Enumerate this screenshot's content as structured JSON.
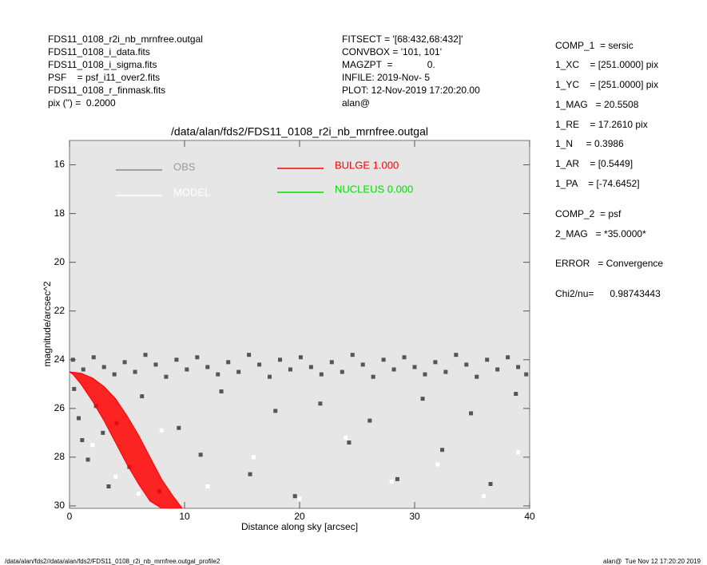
{
  "header": {
    "left": [
      "FDS11_0108_r2i_nb_mrnfree.outgal",
      "FDS11_0108_i_data.fits",
      "FDS11_0108_i_sigma.fits",
      "PSF    = psf_i11_over2.fits",
      "FDS11_0108_r_finmask.fits",
      "pix (\") =  0.2000"
    ],
    "middle": [
      "FITSECT = '[68:432,68:432]'",
      "CONVBOX = '101, 101'",
      "MAGZPT  =             0.",
      "INFILE: 2019-Nov- 5",
      "PLOT: 12-Nov-2019 17:20:20.00",
      "alan@"
    ]
  },
  "panel": [
    "COMP_1  = sersic",
    "1_XC    = [251.0000] pix",
    "1_YC    = [251.0000] pix",
    "1_MAG   = 20.5508",
    "1_RE    = 17.2610 pix",
    "1_N     = 0.3986",
    "1_AR    = [0.5449]",
    "1_PA    = [-74.6452]",
    "COMP_2  = psf",
    "2_MAG   = *35.0000*",
    "ERROR   = Convergence",
    "Chi2/nu=      0.98743443"
  ],
  "footer": {
    "left": "/data/alan/fds2//data/alan/fds2/FDS11_0108_r2i_nb_mrnfree.outgal_profile2",
    "right": "alan@  Tue Nov 12 17:20:20 2019"
  },
  "chart_data": {
    "type": "scatter",
    "title": "/data/alan/fds2/FDS11_0108_r2i_nb_mrnfree.outgal",
    "x_label": "Distance along sky [arcsec]",
    "y_label": "magnitude/arcsec^2",
    "xlim": [
      0,
      40
    ],
    "ylim": [
      30.1,
      15
    ],
    "xticks": [
      0,
      10,
      20,
      30,
      40
    ],
    "yticks": [
      16,
      18,
      20,
      22,
      24,
      26,
      28,
      30
    ],
    "series": [
      {
        "name": "OBS",
        "color": "#555555",
        "x": [
          0.3,
          1.2,
          2.1,
          3.0,
          3.9,
          4.8,
          5.7,
          6.6,
          7.5,
          8.4,
          9.3,
          10.2,
          11.1,
          12.0,
          12.9,
          13.8,
          14.7,
          15.6,
          16.5,
          17.4,
          18.3,
          19.2,
          20.1,
          21.0,
          21.9,
          22.8,
          23.7,
          24.6,
          25.5,
          26.4,
          27.3,
          28.2,
          29.1,
          30.0,
          30.9,
          31.8,
          32.7,
          33.6,
          34.5,
          35.4,
          36.3,
          37.2,
          38.1,
          39.0,
          39.7,
          0.4,
          0.8,
          1.1,
          1.6,
          2.3,
          2.9,
          3.4,
          4.1,
          5.2,
          6.3,
          7.8,
          9.5,
          11.4,
          13.2,
          15.7,
          17.9,
          19.6,
          21.8,
          24.3,
          26.1,
          28.5,
          30.7,
          32.4,
          34.9,
          36.6,
          38.8
        ],
        "values": [
          24.0,
          24.4,
          23.9,
          24.3,
          24.6,
          24.1,
          24.5,
          23.8,
          24.2,
          24.7,
          24.0,
          24.4,
          23.9,
          24.3,
          24.6,
          24.1,
          24.5,
          23.8,
          24.2,
          24.7,
          24.0,
          24.4,
          23.9,
          24.3,
          24.6,
          24.1,
          24.5,
          23.8,
          24.2,
          24.7,
          24.0,
          24.4,
          23.9,
          24.3,
          24.6,
          24.1,
          24.5,
          23.8,
          24.2,
          24.7,
          24.0,
          24.4,
          23.9,
          24.3,
          24.6,
          25.2,
          26.4,
          27.3,
          28.1,
          25.9,
          27.0,
          29.2,
          26.6,
          28.4,
          25.5,
          29.4,
          26.8,
          27.9,
          25.3,
          28.7,
          26.1,
          29.6,
          25.8,
          27.4,
          26.5,
          28.9,
          25.6,
          27.7,
          26.2,
          29.1,
          25.4
        ]
      },
      {
        "name": "MODEL",
        "color": "#ffffff",
        "x": [
          2,
          4,
          6,
          8,
          12,
          16,
          20,
          24,
          28,
          32,
          36,
          39
        ],
        "values": [
          27.5,
          28.8,
          29.5,
          26.9,
          29.2,
          28.0,
          29.7,
          27.2,
          29.0,
          28.3,
          29.6,
          27.8
        ]
      },
      {
        "name": "BULGE  1.000",
        "color": "#ff0000",
        "x": [
          0,
          1,
          2,
          3,
          4,
          5,
          6,
          7,
          8,
          9,
          9.8,
          8.0,
          7.0,
          6.0,
          5.0,
          4.0,
          3.0,
          2.0,
          1.0,
          0.3
        ],
        "values": [
          24.5,
          24.55,
          24.75,
          25.1,
          25.6,
          26.3,
          27.1,
          28.0,
          28.9,
          29.6,
          30.1,
          30.1,
          29.8,
          29.1,
          28.3,
          27.4,
          26.5,
          25.7,
          25.0,
          24.6
        ]
      },
      {
        "name": "NUCLEUS  0.000",
        "color": "#00dd00",
        "x": [],
        "values": []
      }
    ]
  }
}
